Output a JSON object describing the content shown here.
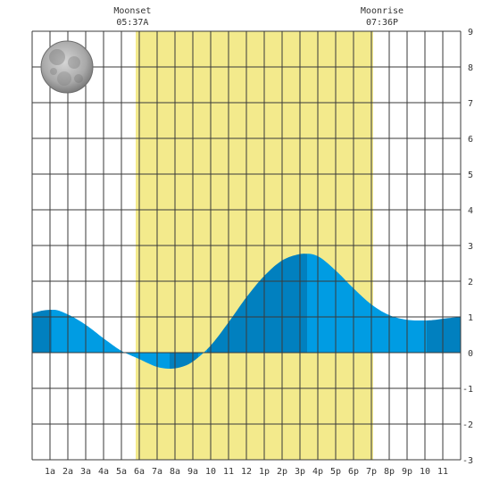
{
  "chart_data": {
    "type": "area",
    "title": "",
    "xlabel": "",
    "ylabel": "",
    "ylim": [
      -3,
      9
    ],
    "y_ticks": [
      "-3",
      "-2",
      "-1",
      "0",
      "1",
      "2",
      "3",
      "4",
      "5",
      "6",
      "7",
      "8",
      "9"
    ],
    "x_range_hours": [
      0,
      24
    ],
    "x_tick_labels": [
      "1a",
      "2a",
      "3a",
      "4a",
      "5a",
      "6a",
      "7a",
      "8a",
      "9a",
      "10",
      "11",
      "12",
      "1p",
      "2p",
      "3p",
      "4p",
      "5p",
      "6p",
      "7p",
      "8p",
      "9p",
      "10",
      "11"
    ],
    "grid": true,
    "daylight": {
      "start_hour": 5.8,
      "end_hour": 19.1,
      "color": "#f3ea8c"
    },
    "annotations": [
      {
        "label": "Moonset",
        "time": "05:37A",
        "hour": 5.62
      },
      {
        "label": "Moonrise",
        "time": "07:36P",
        "hour": 19.6
      }
    ],
    "moon_phase": "full-moon",
    "series": [
      {
        "x": [
          0,
          0.6,
          1.2,
          2,
          3,
          4,
          5,
          6,
          6.5,
          7,
          7.7,
          8.5,
          9,
          10,
          11,
          12,
          13,
          14,
          15,
          15.4,
          16,
          17,
          18,
          19,
          20,
          21,
          22,
          22.6,
          23,
          24
        ],
        "values": [
          1.1,
          1.18,
          1.2,
          1.07,
          0.78,
          0.4,
          0.05,
          -0.18,
          -0.3,
          -0.4,
          -0.45,
          -0.38,
          -0.25,
          0.2,
          0.85,
          1.55,
          2.15,
          2.58,
          2.76,
          2.77,
          2.7,
          2.3,
          1.8,
          1.35,
          1.05,
          0.92,
          0.9,
          0.92,
          0.95,
          1.0
        ]
      }
    ],
    "tide_bands": [
      {
        "from_hour": 0,
        "to_hour": 1.1,
        "color": "#0180bf"
      },
      {
        "from_hour": 1.1,
        "to_hour": 7.7,
        "color": "#009ce3"
      },
      {
        "from_hour": 7.7,
        "to_hour": 9.3,
        "color": "#0180bf"
      },
      {
        "from_hour": 9.3,
        "to_hour": 9.8,
        "color": "#009ce3"
      },
      {
        "from_hour": 9.8,
        "to_hour": 15.4,
        "color": "#0180bf"
      },
      {
        "from_hour": 15.4,
        "to_hour": 22.1,
        "color": "#009ce3"
      },
      {
        "from_hour": 22.1,
        "to_hour": 24,
        "color": "#0180bf"
      }
    ],
    "colors": {
      "grid": "#3a3a3a",
      "background": "#ffffff",
      "axis_text": "#333333"
    }
  }
}
